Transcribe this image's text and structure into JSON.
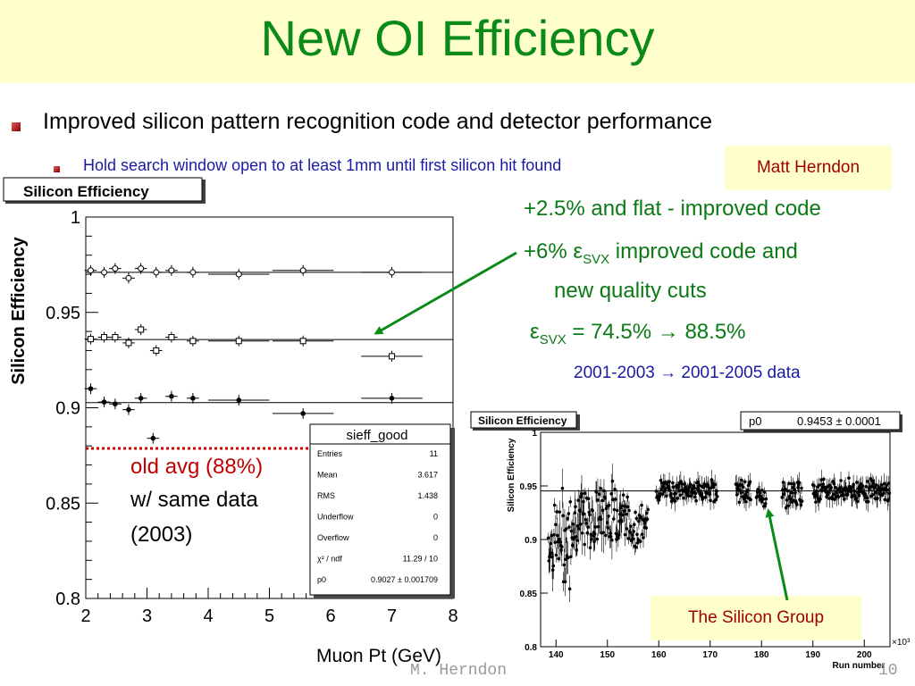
{
  "title": "New OI Efficiency",
  "bullets": {
    "main": "Improved silicon pattern recognition code and detector performance",
    "sub": "Hold search window open to at least 1mm until first silicon hit found"
  },
  "callouts": {
    "author": "Matt Herndon",
    "group": "The Silicon Group"
  },
  "annotations": {
    "flat": "+2.5% and flat - improved code",
    "six_a": "+6% ε",
    "six_sub": "SVX",
    "six_b": " improved code and",
    "six_c": "new quality cuts",
    "eps": "ε",
    "eps_sub": "SVX",
    "eps_rest": " = 74.5% → 88.5%",
    "years": "2001-2003 → 2001-2005 data",
    "old_avg": "old avg (88%)",
    "same_data": "w/ same data",
    "year2003": "(2003)"
  },
  "footer": {
    "author": "M. Herndon",
    "page": "10"
  },
  "colors": {
    "title": "#0a8a18",
    "title_band": "#ffffcc",
    "callout_bg": "#ffffcc",
    "callout_text": "#a00000",
    "annotation_green": "#0a7a14",
    "annotation_blue": "#1a1aa6",
    "arrow_green": "#0a8a18",
    "old_avg_red": "#c00000",
    "dotted_line": "#d00000"
  },
  "chart_data": [
    {
      "type": "scatter",
      "title": "Silicon Efficiency",
      "xlabel": "Muon Pt (GeV)",
      "ylabel": "Silicon Efficiency",
      "xlim": [
        2,
        8
      ],
      "ylim": [
        0.8,
        1
      ],
      "xticks": [
        "2",
        "3",
        "4",
        "5",
        "6",
        "7",
        "8"
      ],
      "yticks": [
        "0.8",
        "0.85",
        "0.9",
        "0.95",
        "1"
      ],
      "series": [
        {
          "marker": "open-circle",
          "x": [
            2.08,
            2.3,
            2.48,
            2.7,
            2.9,
            3.15,
            3.4,
            3.75,
            4.5,
            5.55,
            7.0
          ],
          "y": [
            0.972,
            0.971,
            0.973,
            0.968,
            0.973,
            0.971,
            0.972,
            0.971,
            0.97,
            0.972,
            0.971
          ],
          "fit": 0.971
        },
        {
          "marker": "open-square",
          "x": [
            2.08,
            2.3,
            2.48,
            2.7,
            2.9,
            3.15,
            3.4,
            3.75,
            4.5,
            5.55,
            7.0
          ],
          "y": [
            0.936,
            0.937,
            0.937,
            0.934,
            0.941,
            0.93,
            0.937,
            0.935,
            0.935,
            0.935,
            0.927
          ],
          "fit": 0.9358
        },
        {
          "marker": "filled-circle",
          "x": [
            2.08,
            2.3,
            2.48,
            2.7,
            2.9,
            3.1,
            3.4,
            3.75,
            4.5,
            5.55,
            7.0
          ],
          "y": [
            0.91,
            0.903,
            0.902,
            0.899,
            0.905,
            0.884,
            0.906,
            0.905,
            0.904,
            0.897,
            0.905
          ],
          "fit": 0.9027
        }
      ],
      "stats_box": {
        "name": "sieff_good",
        "rows": [
          {
            "label": "Entries",
            "value": "11"
          },
          {
            "label": "Mean",
            "value": "3.617"
          },
          {
            "label": "RMS",
            "value": "1.438"
          },
          {
            "label": "Underflow",
            "value": "0"
          },
          {
            "label": "Overflow",
            "value": "0"
          },
          {
            "label": "χ² / ndf",
            "value": "11.29 / 10"
          },
          {
            "label": "p0",
            "value": "0.9027 ± 0.001709"
          }
        ]
      },
      "reference_line": {
        "y": 0.88,
        "label": "old avg (88%)"
      }
    },
    {
      "type": "scatter",
      "title": "Silicon Efficiency",
      "xlabel": "Run number",
      "ylabel": "Silicon Efficiency",
      "x_multiplier": "×10³",
      "xlim": [
        137,
        205
      ],
      "ylim": [
        0.8,
        1
      ],
      "xticks": [
        "140",
        "150",
        "160",
        "170",
        "180",
        "190",
        "200"
      ],
      "yticks": [
        "0.8",
        "0.85",
        "0.9",
        "0.95",
        "1"
      ],
      "fit_label": "p0",
      "fit_value": "0.9453 ± 0.0001",
      "fit": 0.9453,
      "segments": [
        {
          "x_start": 138.5,
          "x_end": 143,
          "mean": 0.9,
          "spread": 0.035
        },
        {
          "x_start": 143,
          "x_end": 148,
          "mean": 0.918,
          "spread": 0.022
        },
        {
          "x_start": 148,
          "x_end": 154,
          "mean": 0.925,
          "spread": 0.022
        },
        {
          "x_start": 154,
          "x_end": 158,
          "mean": 0.912,
          "spread": 0.015
        },
        {
          "x_start": 159.5,
          "x_end": 171.5,
          "mean": 0.946,
          "spread": 0.008
        },
        {
          "x_start": 175,
          "x_end": 178,
          "mean": 0.945,
          "spread": 0.008
        },
        {
          "x_start": 179,
          "x_end": 181,
          "mean": 0.94,
          "spread": 0.008
        },
        {
          "x_start": 184,
          "x_end": 188,
          "mean": 0.942,
          "spread": 0.01
        },
        {
          "x_start": 190,
          "x_end": 205,
          "mean": 0.946,
          "spread": 0.008
        }
      ]
    }
  ]
}
